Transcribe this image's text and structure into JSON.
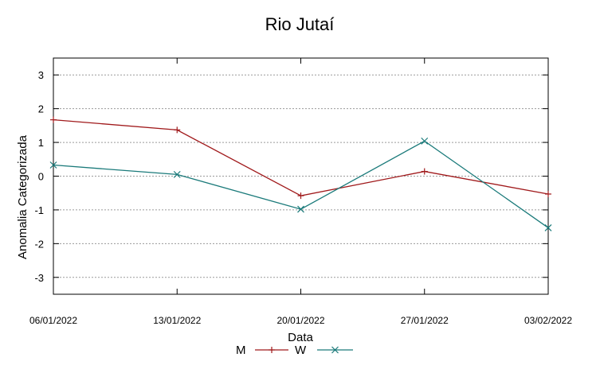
{
  "chart_data": {
    "type": "line",
    "title": "Rio Jutaí",
    "xlabel": "Data",
    "ylabel": "Anomalia Categorizada",
    "categories": [
      "06/01/2022",
      "13/01/2022",
      "20/01/2022",
      "27/01/2022",
      "03/02/2022"
    ],
    "yticks": [
      "3",
      "2",
      "1",
      "0",
      "-1",
      "-2",
      "-3"
    ],
    "ylim": [
      -3.5,
      3.5
    ],
    "grid": true,
    "legend_position": "bottom",
    "series": [
      {
        "name": "M",
        "color": "#a0191b",
        "marker": "plus",
        "values": [
          1.67,
          1.37,
          -0.58,
          0.14,
          -0.53
        ]
      },
      {
        "name": "W",
        "color": "#1a7a7a",
        "marker": "cross",
        "values": [
          0.33,
          0.05,
          -0.98,
          1.04,
          -1.53
        ]
      }
    ]
  }
}
